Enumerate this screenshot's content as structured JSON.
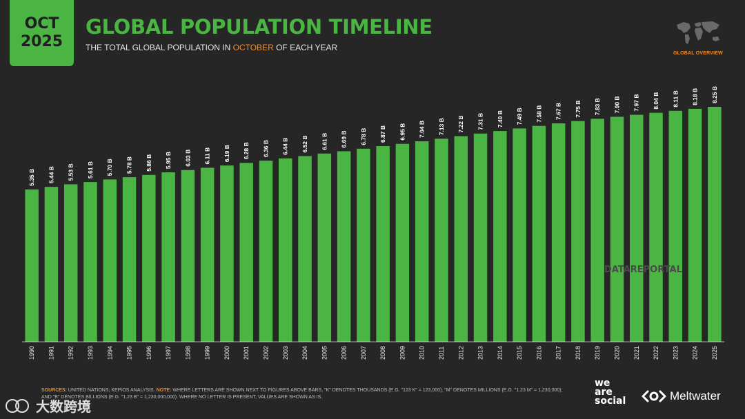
{
  "badge": {
    "month": "OCT",
    "year": "2025"
  },
  "header": {
    "title": "GLOBAL POPULATION TIMELINE",
    "subtitle_pre": "THE TOTAL GLOBAL POPULATION IN ",
    "subtitle_highlight": "OCTOBER",
    "subtitle_post": " OF EACH YEAR",
    "section_label": "GLOBAL OVERVIEW"
  },
  "colors": {
    "bar": "#4bb543",
    "background": "#262626",
    "accent": "#f28b22",
    "label": "#ffffff"
  },
  "chart_data": {
    "type": "bar",
    "title": "GLOBAL POPULATION TIMELINE",
    "xlabel": "",
    "ylabel": "",
    "unit": "B",
    "ylim": [
      0,
      8.25
    ],
    "categories": [
      "1990",
      "1991",
      "1992",
      "1993",
      "1994",
      "1995",
      "1996",
      "1997",
      "1998",
      "1999",
      "2000",
      "2001",
      "2002",
      "2003",
      "2004",
      "2005",
      "2006",
      "2007",
      "2008",
      "2009",
      "2010",
      "2011",
      "2012",
      "2013",
      "2014",
      "2015",
      "2016",
      "2017",
      "2018",
      "2019",
      "2020",
      "2021",
      "2022",
      "2023",
      "2024",
      "2025"
    ],
    "values": [
      5.35,
      5.44,
      5.53,
      5.61,
      5.7,
      5.78,
      5.86,
      5.95,
      6.03,
      6.11,
      6.19,
      6.28,
      6.36,
      6.44,
      6.52,
      6.61,
      6.69,
      6.78,
      6.87,
      6.95,
      7.04,
      7.13,
      7.22,
      7.31,
      7.4,
      7.49,
      7.58,
      7.67,
      7.75,
      7.83,
      7.9,
      7.97,
      8.04,
      8.11,
      8.18,
      8.25
    ],
    "data_labels": [
      "5.35 B",
      "5.44 B",
      "5.53 B",
      "5.61 B",
      "5.70 B",
      "5.78 B",
      "5.86 B",
      "5.95 B",
      "6.03 B",
      "6.11 B",
      "6.19 B",
      "6.28 B",
      "6.36 B",
      "6.44 B",
      "6.52 B",
      "6.61 B",
      "6.69 B",
      "6.78 B",
      "6.87 B",
      "6.95 B",
      "7.04 B",
      "7.13 B",
      "7.22 B",
      "7.31 B",
      "7.40 B",
      "7.49 B",
      "7.58 B",
      "7.67 B",
      "7.75 B",
      "7.83 B",
      "7.90 B",
      "7.97 B",
      "8.04 B",
      "8.11 B",
      "8.18 B",
      "8.25 B"
    ]
  },
  "watermark": "DATAREPORTAL",
  "footer": {
    "sources_label": "SOURCES:",
    "sources_text": " UNITED NATIONS; KEPIOS ANALYSIS. ",
    "note_label": "NOTE:",
    "note_text": " WHERE LETTERS ARE SHOWN NEXT TO FIGURES ABOVE BARS, \"K\" DENOTES THOUSANDS (E.G. \"123 K\" = 123,000), \"M\" DENOTES MILLIONS (E.G. \"1.23 M\" = 1,230,000), AND \"B\" DENOTES BILLIONS (E.G. \"1.23 B\" = 1,230,000,000). WHERE NO LETTER IS PRESENT, VALUES ARE SHOWN AS IS."
  },
  "brands": {
    "we": "we",
    "are": "are",
    "social": "social",
    "meltwater": "Meltwater",
    "corner": "大数跨境"
  }
}
